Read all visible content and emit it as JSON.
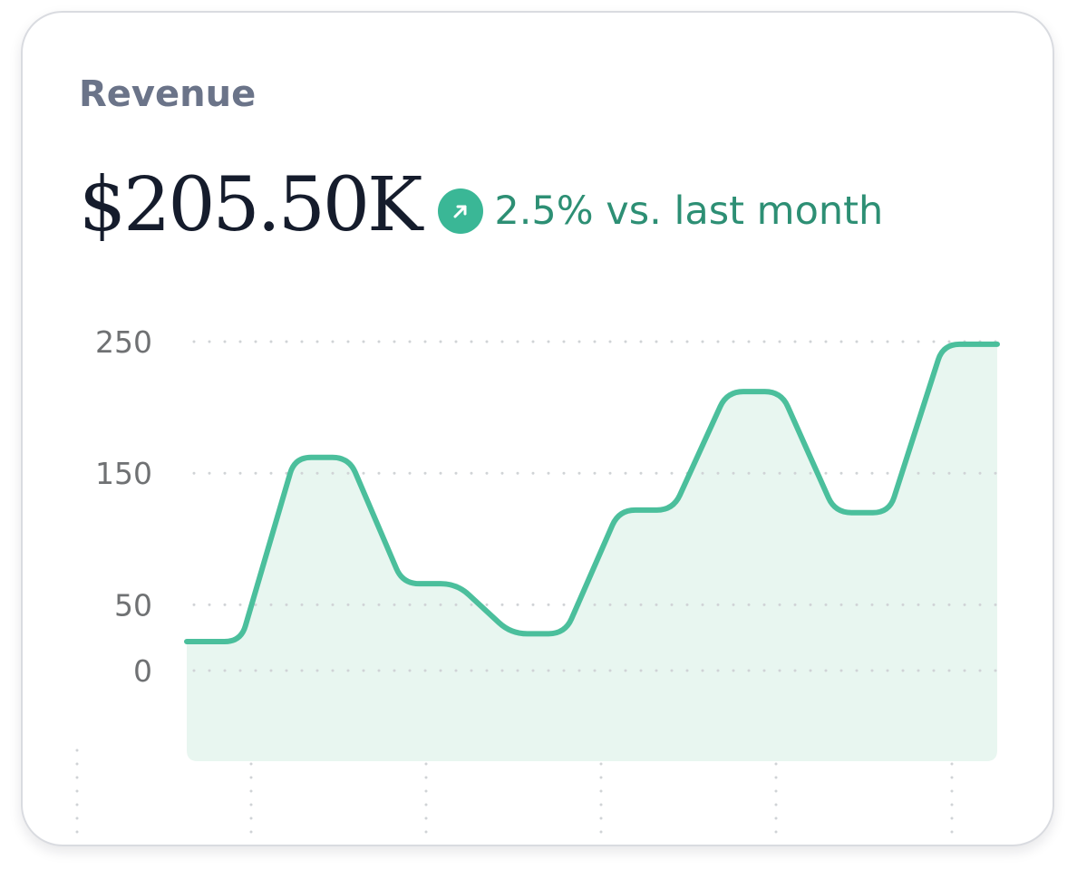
{
  "card": {
    "label": "Revenue",
    "value": "$205.50K",
    "change_text": "2.5% vs. last month",
    "change_direction": "up",
    "trend_icon": "arrow-up-right-icon"
  },
  "colors": {
    "line": "#4bbf9c",
    "area_fill": "#e8f6f0",
    "positive_text": "#2d8f74",
    "badge": "#3ab796",
    "value_text": "#151c2c",
    "label_text": "#6b7489",
    "grid": "#d0d3d6"
  },
  "chart_data": {
    "type": "area",
    "title": "",
    "xlabel": "",
    "ylabel": "",
    "y_ticks": [
      "250",
      "150",
      "50",
      "0"
    ],
    "ylim": [
      -80,
      250
    ],
    "grid": "dotted",
    "legend": "none",
    "series": [
      {
        "values": [
          22,
          22,
          162,
          162,
          66,
          66,
          28,
          28,
          122,
          122,
          212,
          212,
          120,
          120,
          248,
          248
        ]
      }
    ]
  }
}
